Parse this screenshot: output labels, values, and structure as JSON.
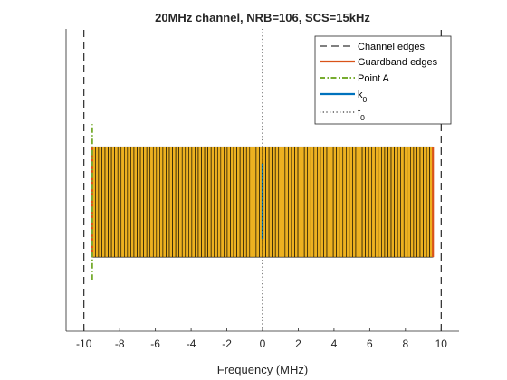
{
  "chart_data": {
    "type": "line",
    "title": "20MHz channel, NRB=106, SCS=15kHz",
    "xlabel": "Frequency (MHz)",
    "ylabel": "",
    "xlim": [
      -11,
      11
    ],
    "ylim": [
      0,
      1
    ],
    "xticks": [
      -10,
      -8,
      -6,
      -4,
      -2,
      0,
      2,
      4,
      6,
      8,
      10
    ],
    "xtick_labels": [
      "-10",
      "-8",
      "-6",
      "-4",
      "-2",
      "0",
      "2",
      "4",
      "6",
      "8",
      "10"
    ],
    "grid": false,
    "legend_position": "top-right",
    "resource_grid": {
      "x_start": -9.54,
      "x_end": 9.54,
      "y_low": 0.245,
      "y_high": 0.61,
      "num_blocks": 106,
      "fill_color": "#EDB120",
      "edge_color": "#000000"
    },
    "series": [
      {
        "name": "Channel edges",
        "style": "dashed",
        "color": "#000000",
        "x": [
          -10,
          10
        ],
        "y_range": [
          0,
          1
        ]
      },
      {
        "name": "Guardband edges",
        "style": "solid",
        "color": "#D95319",
        "x": [
          -9.54,
          9.54
        ],
        "y_range": [
          0.245,
          0.61
        ]
      },
      {
        "name": "Point A",
        "style": "dash-dot",
        "color": "#77AC30",
        "x": [
          -9.54
        ],
        "y_range": [
          0.17,
          0.685
        ]
      },
      {
        "name": "k0",
        "style": "solid",
        "color": "#0072BD",
        "x": [
          0
        ],
        "y_range": [
          0.305,
          0.555
        ]
      },
      {
        "name": "f0",
        "style": "dotted",
        "color": "#000000",
        "x": [
          0
        ],
        "y_range": [
          0,
          1
        ]
      }
    ],
    "legend": [
      {
        "label": "Channel edges",
        "sub": "",
        "series": 0
      },
      {
        "label": "Guardband edges",
        "sub": "",
        "series": 1
      },
      {
        "label": "Point A",
        "sub": "",
        "series": 2
      },
      {
        "label": "k",
        "sub": "0",
        "series": 3
      },
      {
        "label": "f",
        "sub": "0",
        "series": 4
      }
    ]
  }
}
